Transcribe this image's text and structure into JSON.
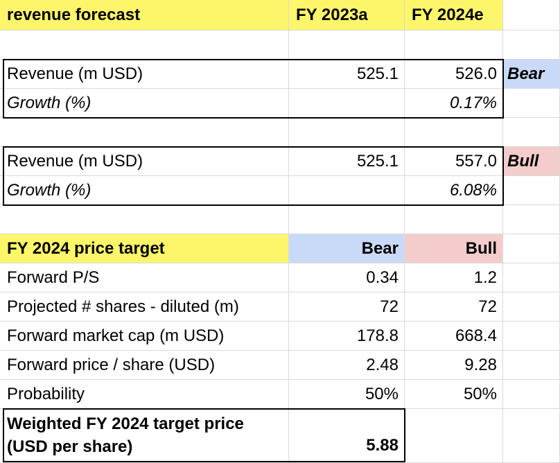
{
  "header": {
    "title": "revenue forecast",
    "col1": "FY 2023a",
    "col2": "FY 2024e"
  },
  "bear_block": {
    "revenue_label": "Revenue (m USD)",
    "revenue_2023": "525.1",
    "revenue_2024": "526.0",
    "scenario": "Bear",
    "growth_label": "Growth (%)",
    "growth_2024": "0.17%"
  },
  "bull_block": {
    "revenue_label": "Revenue (m USD)",
    "revenue_2023": "525.1",
    "revenue_2024": "557.0",
    "scenario": "Bull",
    "growth_label": "Growth (%)",
    "growth_2024": "6.08%"
  },
  "price_target": {
    "title": "FY 2024 price target",
    "bear_header": "Bear",
    "bull_header": "Bull",
    "rows": [
      {
        "label": "Forward P/S",
        "bear": "0.34",
        "bull": "1.2"
      },
      {
        "label": "Projected # shares - diluted (m)",
        "bear": "72",
        "bull": "72"
      },
      {
        "label": "Forward market cap (m USD)",
        "bear": "178.8",
        "bull": "668.4"
      },
      {
        "label": "Forward price / share (USD)",
        "bear": "2.48",
        "bull": "9.28"
      },
      {
        "label": "Probability",
        "bear": "50%",
        "bull": "50%"
      }
    ],
    "weighted_label_line1": "Weighted FY 2024 target price",
    "weighted_label_line2": "(USD per share)",
    "weighted_value": "5.88"
  },
  "colors": {
    "header_yellow": "#fdf66a",
    "bear_blue": "#c9daf8",
    "bull_pink": "#f4cccc",
    "gridline": "#d9d9d9"
  }
}
